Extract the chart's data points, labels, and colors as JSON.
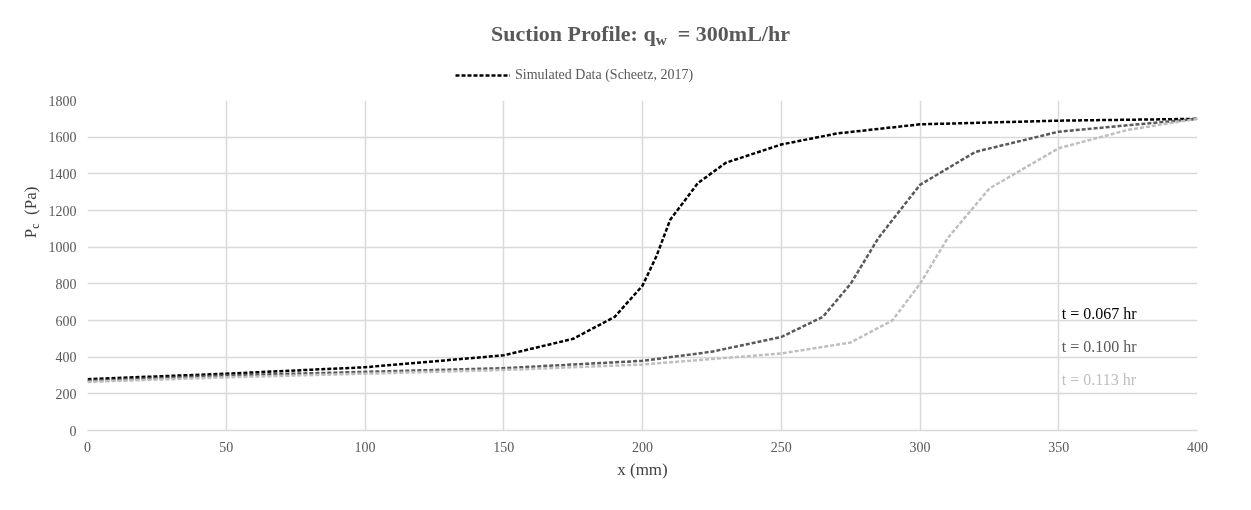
{
  "chart_data": {
    "type": "line",
    "title": "Suction Profile: q$_{w}$ =  300mL/hr",
    "xlabel": "x (mm)",
    "ylabel": "P$_{c}$ (Pa)",
    "xlim": [
      0,
      400
    ],
    "xticks": [
      0,
      50,
      100,
      150,
      200,
      250,
      300,
      350,
      400
    ],
    "ylim": [
      0,
      1800
    ],
    "yticks": [
      0,
      200,
      400,
      600,
      800,
      1000,
      1200,
      1400,
      1600,
      1800
    ],
    "grid": true,
    "legend": "top",
    "line_style": "dashed",
    "series": [
      {
        "name": "Simulated Data (Scheetz, 2017)",
        "color": "#000000",
        "x": [
          0,
          50,
          100,
          150,
          175,
          190,
          200,
          205,
          210,
          220,
          230,
          250,
          270,
          300,
          350,
          400
        ],
        "values": [
          280,
          310,
          345,
          410,
          500,
          620,
          790,
          950,
          1150,
          1350,
          1460,
          1560,
          1620,
          1670,
          1690,
          1700
        ]
      },
      {
        "color": "#595959",
        "x": [
          0,
          50,
          100,
          150,
          200,
          225,
          250,
          265,
          275,
          285,
          300,
          320,
          350,
          400
        ],
        "values": [
          270,
          300,
          320,
          340,
          380,
          430,
          510,
          620,
          800,
          1050,
          1340,
          1520,
          1630,
          1700
        ]
      },
      {
        "color": "#bfbfbf",
        "x": [
          0,
          50,
          100,
          150,
          200,
          250,
          275,
          290,
          300,
          310,
          325,
          350,
          375,
          400
        ],
        "values": [
          265,
          290,
          310,
          330,
          360,
          420,
          480,
          600,
          800,
          1050,
          1320,
          1540,
          1640,
          1700
        ]
      }
    ],
    "annotations": [
      "t = 0.067 hr",
      "t = 0.100 hr",
      "t = 0.113   hr"
    ]
  }
}
